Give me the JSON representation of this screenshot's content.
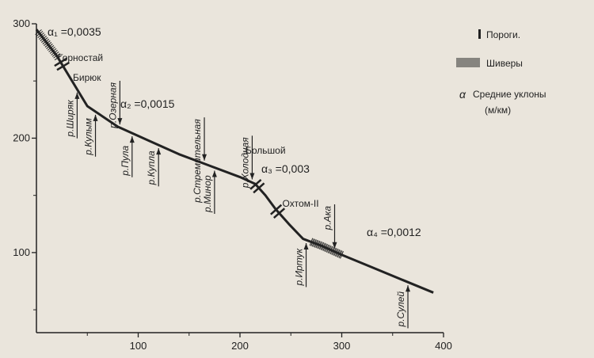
{
  "chart_data": {
    "type": "line",
    "xlim": [
      0,
      400
    ],
    "ylim": [
      30,
      300
    ],
    "x_ticks": [
      100,
      200,
      300,
      400
    ],
    "y_ticks": [
      100,
      200,
      300
    ],
    "grid": false,
    "legend_position": "top-right",
    "profile": {
      "x": [
        0,
        20,
        50,
        80,
        110,
        140,
        170,
        200,
        215,
        225,
        235,
        248,
        262,
        280,
        300,
        330,
        360,
        390
      ],
      "y": [
        295,
        272,
        228,
        210,
        198,
        186,
        176,
        166,
        160,
        150,
        138,
        125,
        112,
        106,
        98,
        87,
        76,
        65
      ]
    },
    "shivery": [
      {
        "x_start": 2,
        "x_end": 22
      },
      {
        "x_start": 270,
        "x_end": 300
      }
    ],
    "porogi": [
      {
        "name": "Бирюк",
        "x": 25,
        "y": 264
      },
      {
        "name": "",
        "x": 217,
        "y": 157
      },
      {
        "name": "Охтом-II",
        "x": 237,
        "y": 136
      }
    ],
    "place_labels": [
      {
        "text": "Горностай",
        "x": 20,
        "y": 262
      },
      {
        "text": "Бирюк",
        "x": 30,
        "y": 262
      },
      {
        "text": "Большой",
        "x": 208,
        "y": 166
      }
    ],
    "tributaries": [
      {
        "name": "р.Ширяк",
        "x": 40,
        "y": 240,
        "side": "below"
      },
      {
        "name": "р.Кулым",
        "x": 58,
        "y": 224,
        "side": "below"
      },
      {
        "name": "р.Озерная",
        "x": 82,
        "y": 210,
        "side": "above"
      },
      {
        "name": "р.Пула",
        "x": 94,
        "y": 206,
        "side": "below"
      },
      {
        "name": "р.Купла",
        "x": 120,
        "y": 198,
        "side": "below"
      },
      {
        "name": "р.Стремительная",
        "x": 165,
        "y": 178,
        "side": "above"
      },
      {
        "name": "р.Минор",
        "x": 175,
        "y": 174,
        "side": "below"
      },
      {
        "name": "р.Холодная",
        "x": 212,
        "y": 162,
        "side": "above"
      },
      {
        "name": "р.Иртук",
        "x": 265,
        "y": 110,
        "side": "below"
      },
      {
        "name": "р.Ака",
        "x": 293,
        "y": 102,
        "side": "above"
      },
      {
        "name": "р.Сулей",
        "x": 365,
        "y": 74,
        "side": "below"
      }
    ],
    "slope_labels": [
      {
        "text": "α₁ =0,0035",
        "x": 15,
        "y": 290
      },
      {
        "text": "α₂ =0,0015",
        "x": 115,
        "y": 218
      },
      {
        "text": "α₃ =0,003",
        "x": 224,
        "y": 156
      },
      {
        "text": "α₄ =0,0012",
        "x": 330,
        "y": 96
      }
    ]
  },
  "legend": {
    "items": [
      {
        "symbol": "porogi",
        "label": "Пороги."
      },
      {
        "symbol": "shivery",
        "label": "Шиверы"
      },
      {
        "symbol": "alpha",
        "label": "Средние уклоны (м/км)"
      }
    ]
  },
  "colors": {
    "background": "#eae5dc",
    "ink": "#222222"
  }
}
